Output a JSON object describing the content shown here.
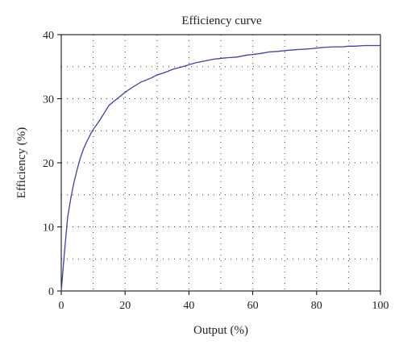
{
  "chart_data": {
    "type": "line",
    "title": "Efficiency curve",
    "xlabel": "Output (%)",
    "ylabel": "Efficiency (%)",
    "xlim": [
      0,
      100
    ],
    "ylim": [
      0,
      40
    ],
    "xticks": [
      0,
      20,
      40,
      60,
      80,
      100
    ],
    "yticks": [
      0,
      10,
      20,
      30,
      40
    ],
    "x_minor_grid_step": 10,
    "y_minor_grid_step": 5,
    "grid": true,
    "series": [
      {
        "color": "#3a3fb4",
        "x": [
          0,
          1,
          2,
          3,
          4,
          5,
          6,
          7,
          8,
          9,
          10,
          12,
          14,
          15,
          17,
          20,
          22,
          25,
          28,
          30,
          33,
          35,
          38,
          40,
          42,
          45,
          48,
          50,
          52,
          55,
          58,
          60,
          63,
          65,
          68,
          70,
          72,
          75,
          78,
          80,
          82,
          85,
          88,
          90,
          92,
          95,
          100
        ],
        "y": [
          0,
          6,
          11.5,
          14.5,
          17,
          19,
          20.8,
          22.2,
          23.3,
          24.3,
          25.2,
          26.6,
          28.2,
          29,
          29.8,
          31,
          31.7,
          32.6,
          33.2,
          33.7,
          34.2,
          34.6,
          35.0,
          35.3,
          35.6,
          35.9,
          36.2,
          36.3,
          36.4,
          36.5,
          36.8,
          36.9,
          37.1,
          37.3,
          37.4,
          37.5,
          37.6,
          37.7,
          37.8,
          37.9,
          38.0,
          38.1,
          38.1,
          38.2,
          38.2,
          38.3,
          38.3
        ]
      }
    ]
  }
}
